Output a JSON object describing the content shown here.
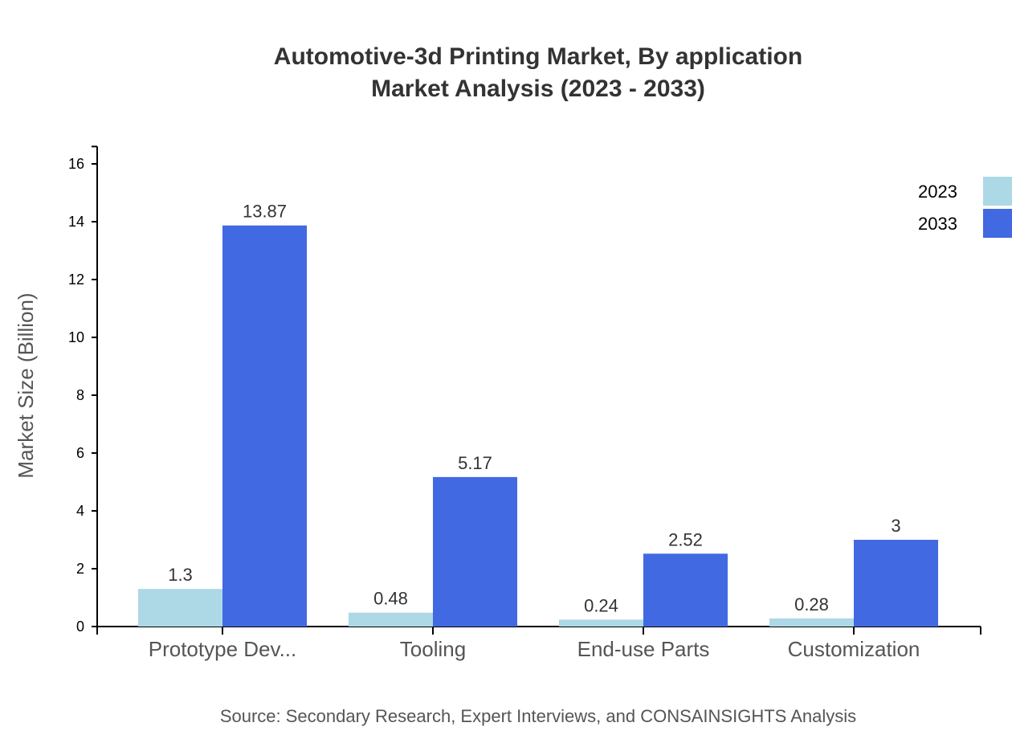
{
  "chart_data": {
    "type": "bar",
    "title": "Automotive-3d Printing Market, By application",
    "subtitle": "Market Analysis (2023 - 2033)",
    "xlabel": "",
    "ylabel": "Market Size (Billion)",
    "ylim": [
      0,
      16.6
    ],
    "yticks": [
      0,
      2,
      4,
      6,
      8,
      10,
      12,
      14,
      16
    ],
    "categories": [
      "Prototype Dev...",
      "Tooling",
      "End-use Parts",
      "Customization"
    ],
    "series": [
      {
        "name": "2023",
        "color": "#add8e6",
        "values": [
          1.3,
          0.48,
          0.24,
          0.28
        ]
      },
      {
        "name": "2033",
        "color": "#4169e1",
        "values": [
          13.87,
          5.17,
          2.52,
          3
        ]
      }
    ],
    "legend": "top-right",
    "grid": false,
    "source": "Source: Secondary Research, Expert Interviews, and CONSAINSIGHTS Analysis"
  }
}
